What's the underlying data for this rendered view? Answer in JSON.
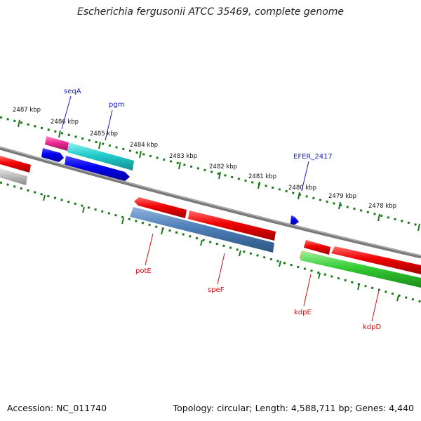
{
  "title": "Escherichia fergusonii ATCC 35469, complete genome",
  "footer": {
    "accession": "Accession: NC_011740",
    "summary": "Topology: circular; Length: 4,588,711 bp; Genes: 4,440"
  },
  "colors": {
    "backbone": "#777777",
    "tick": "#1a7a1a",
    "label_forward": "#1a1acc",
    "label_reverse": "#cc1111"
  },
  "ticks": [
    "2487 kbp",
    "2486 kbp",
    "2485 kbp",
    "2484 kbp",
    "2483 kbp",
    "2482 kbp",
    "2481 kbp",
    "2480 kbp",
    "2479 kbp",
    "2478 kbp"
  ],
  "genes_forward": [
    {
      "name": "seqA",
      "label": "seqA"
    },
    {
      "name": "pgm",
      "label": "pgm"
    },
    {
      "name": "EFER_2417",
      "label": "EFER_2417"
    }
  ],
  "genes_reverse": [
    {
      "name": "potE",
      "label": "potE"
    },
    {
      "name": "speF",
      "label": "speF"
    },
    {
      "name": "kdpE",
      "label": "kdpE"
    },
    {
      "name": "kdpD",
      "label": "kdpD"
    }
  ]
}
